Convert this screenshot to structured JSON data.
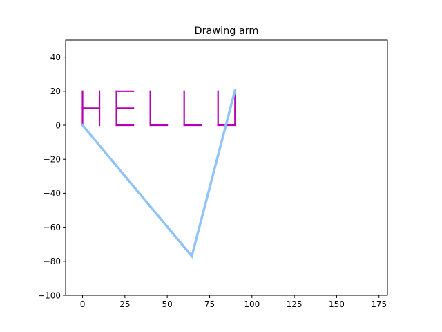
{
  "chart_data": {
    "type": "line",
    "title": "Drawing arm",
    "xlabel": "",
    "ylabel": "",
    "xlim": [
      -10,
      180
    ],
    "ylim": [
      -100,
      50
    ],
    "x_ticks": [
      0,
      25,
      50,
      75,
      100,
      125,
      150,
      175
    ],
    "y_ticks": [
      -100,
      -80,
      -60,
      -40,
      -20,
      0,
      20,
      40
    ],
    "x_tick_labels": [
      "0",
      "25",
      "50",
      "75",
      "100",
      "125",
      "150",
      "175"
    ],
    "y_tick_labels": [
      "−100",
      "−80",
      "−60",
      "−40",
      "−20",
      "0",
      "20",
      "40"
    ],
    "grid": false,
    "series": [
      {
        "kind": "arm",
        "color": "#90c4f9",
        "points": [
          [
            0,
            0
          ],
          [
            64.5,
            -77
          ],
          [
            90,
            20.5
          ]
        ]
      },
      {
        "kind": "trace",
        "color": "#b300b3",
        "strokes": [
          [
            [
              0,
              0
            ],
            [
              0,
              20
            ]
          ],
          [
            [
              0,
              10
            ],
            [
              10,
              10
            ]
          ],
          [
            [
              10,
              0
            ],
            [
              10,
              20
            ]
          ],
          [
            [
              20,
              0
            ],
            [
              20,
              20
            ]
          ],
          [
            [
              20,
              20
            ],
            [
              30,
              20
            ]
          ],
          [
            [
              20,
              10
            ],
            [
              30,
              10
            ]
          ],
          [
            [
              20,
              0
            ],
            [
              30,
              0
            ]
          ],
          [
            [
              40,
              0
            ],
            [
              40,
              20
            ]
          ],
          [
            [
              40,
              0
            ],
            [
              50,
              0
            ]
          ],
          [
            [
              60,
              0
            ],
            [
              60,
              20
            ]
          ],
          [
            [
              60,
              0
            ],
            [
              70,
              0
            ]
          ],
          [
            [
              80,
              0
            ],
            [
              80,
              20
            ]
          ],
          [
            [
              80,
              0
            ],
            [
              90,
              0
            ]
          ],
          [
            [
              90,
              0
            ],
            [
              90,
              20
            ]
          ]
        ]
      }
    ]
  }
}
